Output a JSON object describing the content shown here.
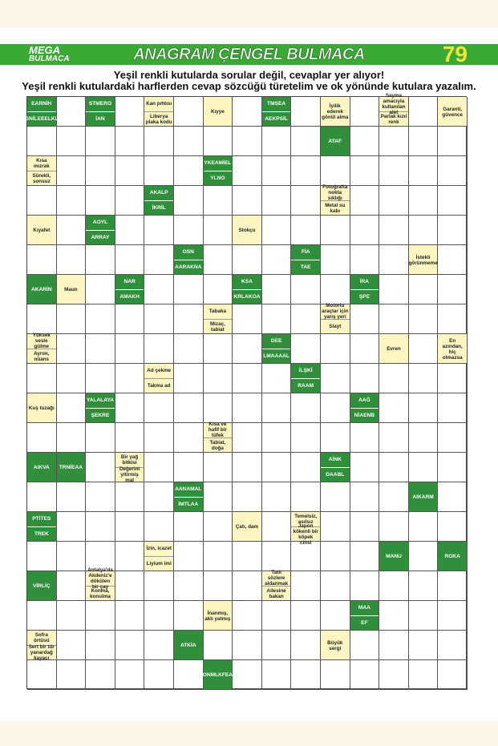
{
  "header": {
    "logo_top": "MEGA",
    "logo_bottom": "BULMACA",
    "title": "ANAGRAM ÇENGEL BULMACA",
    "page_number": "79"
  },
  "instructions": [
    "Yeşil renkli kutularda sorular değil, cevaplar yer alıyor!",
    "Yeşil renkli kutulardaki harflerden cevap sözcüğü türetelim ve ok yönünde kutulara yazalım."
  ],
  "rows": [
    [
      {
        "kind": "green",
        "texts": [
          "EARNİH",
          "GNİLEEELKL"
        ]
      },
      null,
      {
        "kind": "green",
        "texts": [
          "STMERO",
          "İAN"
        ]
      },
      null,
      {
        "kind": "yellow",
        "texts": [
          "Kan pıhtısı",
          "Liberya plaka kodu"
        ]
      },
      null,
      {
        "kind": "yellow",
        "texts": [
          "Kıyye"
        ]
      },
      null,
      {
        "kind": "green",
        "texts": [
          "TMSEA",
          "AEKPSİL"
        ]
      },
      null,
      {
        "kind": "yellow",
        "texts": [
          "İyilik ederek gönül alma"
        ]
      },
      null,
      {
        "kind": "yellow",
        "texts": [
          "Sayma amacıyla kullanılan alet",
          "Parlak kızıl renk"
        ]
      },
      null,
      {
        "kind": "yellow",
        "texts": [
          "Garanti, güvence"
        ]
      }
    ],
    [
      null,
      null,
      null,
      null,
      null,
      null,
      null,
      null,
      null,
      null,
      {
        "kind": "green",
        "texts": [
          "ATAF"
        ]
      },
      null,
      null,
      null,
      null
    ],
    [
      {
        "kind": "yellow",
        "texts": [
          "Kısa mızrak",
          "Sürekli, sonsuz"
        ]
      },
      null,
      null,
      null,
      null,
      null,
      {
        "kind": "green",
        "texts": [
          "YKEAMİEL",
          "YLNO"
        ]
      },
      null,
      null,
      null,
      null,
      null,
      null,
      null,
      null
    ],
    [
      null,
      null,
      null,
      null,
      {
        "kind": "green",
        "texts": [
          "AKALP",
          "İKRİL"
        ]
      },
      null,
      null,
      null,
      null,
      null,
      {
        "kind": "yellow",
        "texts": [
          "Fotoğrafta nokta sıklığı",
          "Metal su kabı"
        ]
      },
      null,
      null,
      null,
      null
    ],
    [
      {
        "kind": "yellow",
        "texts": [
          "Kıyafet"
        ]
      },
      null,
      {
        "kind": "green",
        "texts": [
          "AOYL",
          "ARRAY"
        ]
      },
      null,
      null,
      null,
      null,
      {
        "kind": "yellow",
        "texts": [
          "Stokçu"
        ]
      },
      null,
      null,
      null,
      null,
      null,
      null,
      null
    ],
    [
      null,
      null,
      null,
      null,
      null,
      {
        "kind": "green",
        "texts": [
          "OSN",
          "AARAKNA"
        ]
      },
      null,
      null,
      null,
      {
        "kind": "green",
        "texts": [
          "FİA",
          "TAE"
        ]
      },
      null,
      null,
      null,
      {
        "kind": "yellow",
        "texts": [
          "İstekli görünmeme"
        ]
      },
      null
    ],
    [
      {
        "kind": "green",
        "texts": [
          "AKARİN"
        ]
      },
      {
        "kind": "yellow",
        "texts": [
          "Maun"
        ]
      },
      null,
      {
        "kind": "green",
        "texts": [
          "NAR",
          "AMAKH"
        ]
      },
      null,
      null,
      null,
      {
        "kind": "green",
        "texts": [
          "KSA",
          "KRLAKOA"
        ]
      },
      null,
      null,
      null,
      {
        "kind": "green",
        "texts": [
          "İRA",
          "ŞPE"
        ]
      },
      null,
      null,
      null
    ],
    [
      null,
      null,
      null,
      null,
      null,
      null,
      {
        "kind": "yellow",
        "texts": [
          "Tabaka",
          "Mizaç, tabiat"
        ]
      },
      null,
      null,
      null,
      {
        "kind": "yellow",
        "texts": [
          "Motorlu araçlar için yarış yeri",
          "Slayt"
        ]
      },
      null,
      null,
      null,
      null
    ],
    [
      {
        "kind": "yellow",
        "texts": [
          "Yüksek sesle gülme",
          "Ayrım, nüans"
        ]
      },
      null,
      null,
      null,
      null,
      null,
      null,
      null,
      {
        "kind": "green",
        "texts": [
          "DEE",
          "LMAAAAL"
        ]
      },
      null,
      null,
      null,
      {
        "kind": "yellow",
        "texts": [
          "Evren"
        ]
      },
      null,
      {
        "kind": "yellow",
        "texts": [
          "En azından, hiç olmazsa"
        ]
      }
    ],
    [
      null,
      null,
      null,
      null,
      {
        "kind": "yellow",
        "texts": [
          "Ad çekme",
          "Takma ad"
        ]
      },
      null,
      null,
      null,
      null,
      {
        "kind": "green",
        "texts": [
          "İLŞKİ",
          "RAAM"
        ]
      },
      null,
      null,
      null,
      null,
      null
    ],
    [
      {
        "kind": "yellow",
        "texts": [
          "Kuş tuzağı"
        ]
      },
      null,
      {
        "kind": "green",
        "texts": [
          "YALALAYA",
          "ŞEKRE"
        ]
      },
      null,
      null,
      null,
      null,
      null,
      null,
      null,
      null,
      {
        "kind": "green",
        "texts": [
          "AAĞ",
          "NİAENB"
        ]
      },
      null,
      null,
      null
    ],
    [
      null,
      null,
      null,
      null,
      null,
      null,
      {
        "kind": "yellow",
        "texts": [
          "Kısa ve hafif bir tüfek",
          "Tabiat, doğa"
        ]
      },
      null,
      null,
      null,
      null,
      null,
      null,
      null,
      null
    ],
    [
      {
        "kind": "green",
        "texts": [
          "AIKVA"
        ]
      },
      {
        "kind": "green",
        "texts": [
          "TRNİEAA"
        ]
      },
      null,
      {
        "kind": "yellow",
        "texts": [
          "Bir yağ bitkisi",
          "Değerini yitirmiş mal"
        ]
      },
      null,
      null,
      null,
      null,
      null,
      null,
      {
        "kind": "green",
        "texts": [
          "AİNK",
          "DAABL"
        ]
      },
      null,
      null,
      null,
      null
    ],
    [
      null,
      null,
      null,
      null,
      null,
      {
        "kind": "green",
        "texts": [
          "AANAMAL",
          "İMTLAA"
        ]
      },
      null,
      null,
      null,
      null,
      null,
      null,
      null,
      {
        "kind": "green",
        "texts": [
          "AIKARM"
        ]
      },
      null
    ],
    [
      {
        "kind": "green",
        "texts": [
          "PTİTES",
          "TREK"
        ]
      },
      null,
      null,
      null,
      null,
      null,
      null,
      {
        "kind": "yellow",
        "texts": [
          "Çatı, dam"
        ]
      },
      null,
      {
        "kind": "yellow",
        "texts": [
          "Temelsiz, asılsız",
          "Japon kökenli bir köpek cinsi"
        ]
      },
      null,
      null,
      null,
      null,
      null
    ],
    [
      null,
      null,
      null,
      null,
      {
        "kind": "yellow",
        "texts": [
          "İzin, icazet",
          "Liyium imi"
        ]
      },
      null,
      null,
      null,
      null,
      null,
      null,
      null,
      {
        "kind": "green",
        "texts": [
          "MANU"
        ]
      },
      null,
      {
        "kind": "green",
        "texts": [
          "ROKA"
        ]
      }
    ],
    [
      {
        "kind": "green",
        "texts": [
          "VİRLİÇ"
        ]
      },
      null,
      {
        "kind": "yellow",
        "texts": [
          "Antalya'da Akdeniz'e dökülen bir çay",
          "Konma, konulma"
        ]
      },
      null,
      null,
      null,
      null,
      null,
      {
        "kind": "yellow",
        "texts": [
          "Tatlı sözlere aldanmak",
          "Ailesine bakan"
        ]
      },
      null,
      null,
      null,
      null,
      null,
      null
    ],
    [
      null,
      null,
      null,
      null,
      null,
      null,
      {
        "kind": "yellow",
        "texts": [
          "İnanmış, aklı yatmış"
        ]
      },
      null,
      null,
      null,
      null,
      {
        "kind": "green",
        "texts": [
          "MAA",
          "EF"
        ]
      },
      null,
      null,
      null
    ],
    [
      {
        "kind": "yellow",
        "texts": [
          "Sofra örtüsü",
          "Sert bir tür yanardağ kayacı"
        ]
      },
      null,
      null,
      null,
      null,
      {
        "kind": "green",
        "texts": [
          "ATKİA"
        ]
      },
      null,
      null,
      null,
      null,
      {
        "kind": "yellow",
        "texts": [
          "Büyük sergi"
        ]
      },
      null,
      null,
      null,
      null
    ],
    [
      null,
      null,
      null,
      null,
      null,
      null,
      {
        "kind": "green",
        "texts": [
          "ONMLKFEA"
        ]
      },
      null,
      null,
      null,
      null,
      null,
      null,
      null,
      null
    ]
  ]
}
